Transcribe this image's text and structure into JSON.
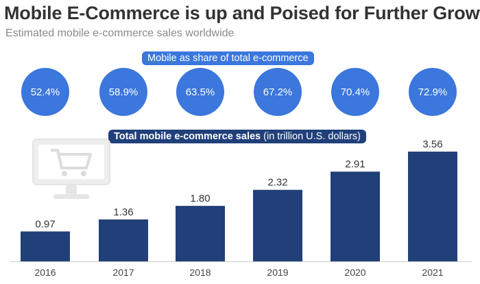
{
  "title": "Mobile E-Commerce is up and Poised for Further Growth",
  "subtitle": "Estimated mobile e-commerce sales worldwide",
  "share_header": "Mobile as share of total e-commerce",
  "sales_header_bold": "Total mobile e-commerce sales",
  "sales_header_unit": "(in trillion U.S. dollars)",
  "colors": {
    "circle": "#3b77dc",
    "bar": "#21407a",
    "accent_dark": "#21407a"
  },
  "icons": [
    "shopping-cart-monitor-icon"
  ],
  "chart_data": [
    {
      "type": "bar",
      "categories": [
        "2016",
        "2017",
        "2018",
        "2019",
        "2020",
        "2021"
      ],
      "values": [
        0.97,
        1.36,
        1.8,
        2.32,
        2.91,
        3.56
      ],
      "value_labels": [
        "0.97",
        "1.36",
        "1.80",
        "2.32",
        "2.91",
        "3.56"
      ],
      "ylim": [
        0,
        3.56
      ]
    },
    {
      "type": "table",
      "categories": [
        "2016",
        "2017",
        "2018",
        "2019",
        "2020",
        "2021"
      ],
      "values": [
        52.4,
        58.9,
        63.5,
        67.2,
        70.4,
        72.9
      ],
      "value_labels": [
        "52.4%",
        "58.9%",
        "63.5%",
        "67.2%",
        "70.4%",
        "72.9%"
      ]
    }
  ]
}
